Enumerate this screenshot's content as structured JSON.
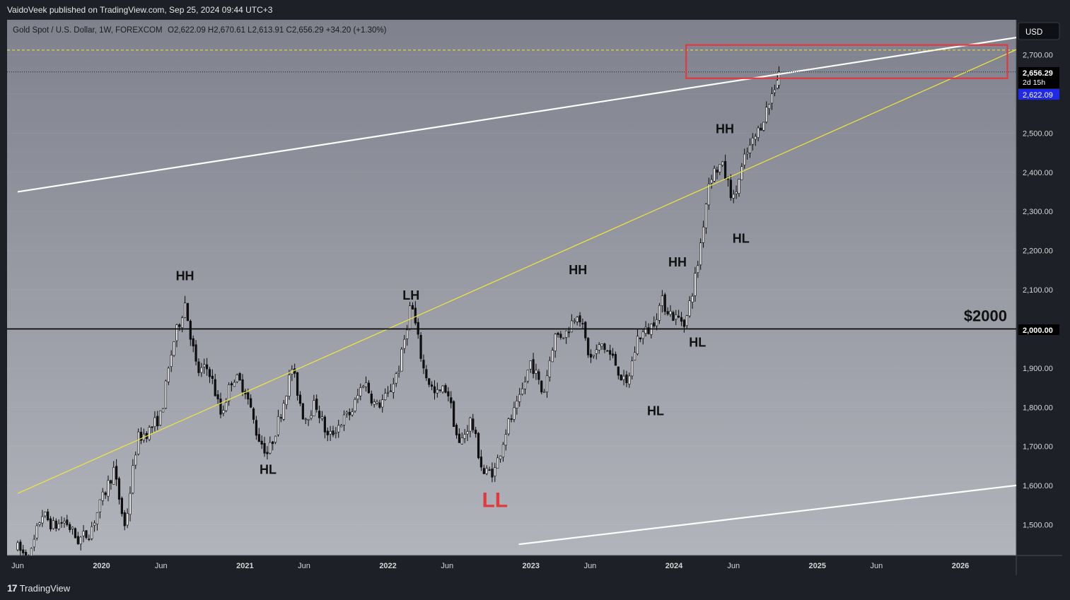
{
  "header": {
    "published": "VaidoVeek published on TradingView.com, Sep 25, 2024 09:44 UTC+3"
  },
  "footer": {
    "brand": "TradingView",
    "logo_text": "17"
  },
  "legend": {
    "symbol": "Gold Spot / U.S. Dollar, 1W, FOREXCOM",
    "ohlc": "O2,622.09  H2,670.61  L2,613.91  C2,656.29  +34.20 (+1.30%)"
  },
  "currency": "USD",
  "price_tags": {
    "last": "2,656.29",
    "countdown": "2d 15h",
    "open": "2,622.09",
    "level": "2,000.00"
  },
  "colors": {
    "bull": "#e8e8e8",
    "bear": "#101010",
    "accent": "#e03a3e",
    "yellow": "#f2e63a",
    "blue": "#2129e8"
  },
  "chart_data": {
    "type": "candlestick",
    "title": "Gold Spot / U.S. Dollar, 1W, FOREXCOM",
    "ylim": [
      1450,
      2790
    ],
    "yticks": [
      1500,
      1600,
      1700,
      1800,
      1900,
      2000,
      2100,
      2200,
      2300,
      2400,
      2500,
      2600,
      2700
    ],
    "ytick_labels": [
      "1,500.00",
      "1,600.00",
      "1,700.00",
      "1,800.00",
      "1,900.00",
      "2,000.00",
      "2,100.00",
      "2,200.00",
      "2,300.00",
      "2,400.00",
      "2,500.00",
      "2,600.00",
      "2,700.00"
    ],
    "xticks": [
      "Jun",
      "2020",
      "Jun",
      "2021",
      "Jun",
      "2022",
      "Jun",
      "2023",
      "Jun",
      "2024",
      "Jun",
      "2025",
      "Jun",
      "2026"
    ],
    "xtick_dates": [
      "2019-06-01",
      "2020-01-01",
      "2020-06-01",
      "2021-01-01",
      "2021-06-01",
      "2022-01-01",
      "2022-06-01",
      "2023-01-01",
      "2023-06-01",
      "2024-01-01",
      "2024-06-01",
      "2025-01-01",
      "2025-06-01",
      "2026-01-01"
    ],
    "price_path": [
      [
        "2019-06-01",
        1440
      ],
      [
        "2019-07-01",
        1410
      ],
      [
        "2019-08-01",
        1530
      ],
      [
        "2019-09-01",
        1495
      ],
      [
        "2019-10-01",
        1510
      ],
      [
        "2019-11-01",
        1460
      ],
      [
        "2019-12-01",
        1480
      ],
      [
        "2020-01-01",
        1560
      ],
      [
        "2020-02-01",
        1640
      ],
      [
        "2020-03-01",
        1490
      ],
      [
        "2020-04-01",
        1720
      ],
      [
        "2020-05-01",
        1740
      ],
      [
        "2020-06-01",
        1780
      ],
      [
        "2020-07-01",
        1960
      ],
      [
        "2020-08-01",
        2067
      ],
      [
        "2020-09-01",
        1890
      ],
      [
        "2020-10-01",
        1900
      ],
      [
        "2020-11-01",
        1780
      ],
      [
        "2020-12-01",
        1880
      ],
      [
        "2021-01-01",
        1850
      ],
      [
        "2021-02-01",
        1730
      ],
      [
        "2021-03-01",
        1680
      ],
      [
        "2021-04-01",
        1780
      ],
      [
        "2021-05-01",
        1900
      ],
      [
        "2021-06-01",
        1770
      ],
      [
        "2021-07-01",
        1810
      ],
      [
        "2021-08-01",
        1720
      ],
      [
        "2021-09-01",
        1760
      ],
      [
        "2021-10-01",
        1790
      ],
      [
        "2021-11-01",
        1870
      ],
      [
        "2021-12-01",
        1800
      ],
      [
        "2022-01-01",
        1830
      ],
      [
        "2022-02-01",
        1910
      ],
      [
        "2022-03-01",
        2070
      ],
      [
        "2022-04-01",
        1900
      ],
      [
        "2022-05-01",
        1830
      ],
      [
        "2022-06-01",
        1850
      ],
      [
        "2022-07-01",
        1700
      ],
      [
        "2022-08-01",
        1770
      ],
      [
        "2022-09-01",
        1630
      ],
      [
        "2022-10-01",
        1640
      ],
      [
        "2022-11-01",
        1750
      ],
      [
        "2022-12-01",
        1810
      ],
      [
        "2023-01-01",
        1920
      ],
      [
        "2023-02-01",
        1830
      ],
      [
        "2023-03-01",
        1980
      ],
      [
        "2023-04-01",
        1990
      ],
      [
        "2023-05-01",
        2050
      ],
      [
        "2023-06-01",
        1920
      ],
      [
        "2023-07-01",
        1960
      ],
      [
        "2023-08-01",
        1920
      ],
      [
        "2023-09-01",
        1850
      ],
      [
        "2023-10-01",
        1980
      ],
      [
        "2023-11-01",
        2000
      ],
      [
        "2023-12-01",
        2070
      ],
      [
        "2024-01-01",
        2030
      ],
      [
        "2024-02-01",
        2020
      ],
      [
        "2024-03-01",
        2160
      ],
      [
        "2024-04-01",
        2390
      ],
      [
        "2024-05-01",
        2420
      ],
      [
        "2024-06-01",
        2330
      ],
      [
        "2024-07-01",
        2440
      ],
      [
        "2024-08-01",
        2500
      ],
      [
        "2024-09-01",
        2580
      ],
      [
        "2024-09-25",
        2656
      ]
    ],
    "last_candle": {
      "date": "2024-09-25",
      "open": 2622.09,
      "high": 2670.61,
      "low": 2613.91,
      "close": 2656.29
    },
    "horizontal_level": {
      "value": 2000,
      "label": "$2000"
    },
    "resistance_zone": {
      "x_from": "2024-02-01",
      "x_to": "2026-05-01",
      "y_from": 2640,
      "y_to": 2725
    },
    "dashed_level": 2712,
    "dotted_level": 2656.29,
    "trendlines": [
      {
        "name": "upper-channel",
        "from": [
          "2019-06-01",
          2350
        ],
        "to": [
          "2026-07-01",
          2750
        ]
      },
      {
        "name": "lower-channel",
        "from": [
          "2022-12-01",
          1450
        ],
        "to": [
          "2026-07-01",
          1605
        ]
      },
      {
        "name": "yellow-trend",
        "from": [
          "2019-06-01",
          1580
        ],
        "to": [
          "2026-07-01",
          2730
        ]
      }
    ],
    "annotations": [
      {
        "text": "HH",
        "x": "2020-08-01",
        "y": 2124,
        "color": "#111111"
      },
      {
        "text": "HL",
        "x": "2021-03-01",
        "y": 1630,
        "color": "#111111"
      },
      {
        "text": "LH",
        "x": "2022-03-01",
        "y": 2075,
        "color": "#111111"
      },
      {
        "text": "LL",
        "x": "2022-10-01",
        "y": 1545,
        "color": "#e03a3e"
      },
      {
        "text": "HH",
        "x": "2023-05-01",
        "y": 2140,
        "color": "#111111"
      },
      {
        "text": "HL",
        "x": "2023-11-15",
        "y": 1780,
        "color": "#111111"
      },
      {
        "text": "HH",
        "x": "2024-01-10",
        "y": 2160,
        "color": "#111111"
      },
      {
        "text": "HL",
        "x": "2024-03-01",
        "y": 1955,
        "color": "#111111"
      },
      {
        "text": "HH",
        "x": "2024-05-10",
        "y": 2500,
        "color": "#111111"
      },
      {
        "text": "HL",
        "x": "2024-06-20",
        "y": 2220,
        "color": "#111111"
      }
    ]
  }
}
